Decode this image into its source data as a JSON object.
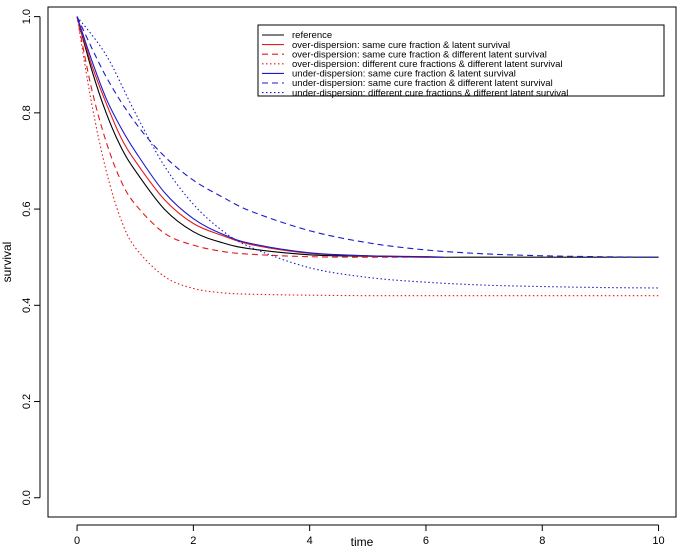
{
  "chart_data": {
    "type": "line",
    "xlabel": "time",
    "ylabel": "survival",
    "xlim": [
      -0.5,
      10.3
    ],
    "ylim": [
      -0.04,
      1.02
    ],
    "xticks": [
      "0",
      "2",
      "4",
      "6",
      "8",
      "10"
    ],
    "yticks": [
      "0.0",
      "0.2",
      "0.4",
      "0.6",
      "0.8",
      "1.0"
    ],
    "grid": false,
    "legend_position": "top-right",
    "series": [
      {
        "name": "reference",
        "color": "#000000",
        "dash": "solid",
        "x": [
          0,
          0.25,
          0.5,
          0.75,
          1,
          1.5,
          2,
          2.5,
          3,
          4,
          5,
          6,
          7,
          8,
          10
        ],
        "y": [
          1.0,
          0.89,
          0.8,
          0.73,
          0.68,
          0.6,
          0.553,
          0.53,
          0.517,
          0.505,
          0.502,
          0.5,
          0.5,
          0.5,
          0.5
        ]
      },
      {
        "name": "over-dispersion: same cure fraction & latent survival",
        "color": "#e41a1c",
        "dash": "solid",
        "x": [
          0,
          0.25,
          0.5,
          0.75,
          1,
          1.5,
          2,
          2.5,
          3,
          4,
          5,
          6,
          6.3
        ],
        "y": [
          1.0,
          0.9,
          0.82,
          0.75,
          0.7,
          0.62,
          0.57,
          0.545,
          0.526,
          0.508,
          0.503,
          0.501,
          0.5
        ]
      },
      {
        "name": "over-dispersion: same cure fraction & different latent survival",
        "color": "#e41a1c",
        "dash": "dashed",
        "x": [
          0,
          0.25,
          0.5,
          0.75,
          1,
          1.5,
          2,
          2.5,
          3,
          4,
          5,
          6,
          6.3
        ],
        "y": [
          1.0,
          0.85,
          0.74,
          0.66,
          0.61,
          0.55,
          0.525,
          0.512,
          0.506,
          0.501,
          0.5,
          0.5,
          0.5
        ]
      },
      {
        "name": "over-dispersion: different cure fractions & different latent survival",
        "color": "#e41a1c",
        "dash": "dotted",
        "x": [
          0,
          0.25,
          0.5,
          0.75,
          1,
          1.5,
          2,
          2.5,
          3,
          4,
          5,
          6,
          8,
          10
        ],
        "y": [
          1.0,
          0.82,
          0.68,
          0.58,
          0.52,
          0.46,
          0.435,
          0.426,
          0.423,
          0.421,
          0.42,
          0.42,
          0.42,
          0.42
        ]
      },
      {
        "name": "under-dispersion: same cure fraction & latent survival",
        "color": "#1a1acc",
        "dash": "solid",
        "x": [
          0,
          0.25,
          0.5,
          0.75,
          1,
          1.5,
          2,
          2.5,
          3,
          4,
          5,
          6,
          6.3
        ],
        "y": [
          1.0,
          0.91,
          0.83,
          0.77,
          0.72,
          0.635,
          0.58,
          0.548,
          0.528,
          0.509,
          0.503,
          0.501,
          0.5
        ]
      },
      {
        "name": "under-dispersion: same cure fraction & different latent survival",
        "color": "#1a1acc",
        "dash": "dashed",
        "x": [
          0,
          0.5,
          1,
          1.5,
          2,
          2.5,
          3,
          4,
          5,
          6,
          7,
          8,
          9,
          10
        ],
        "y": [
          1.0,
          0.875,
          0.78,
          0.71,
          0.66,
          0.625,
          0.595,
          0.555,
          0.53,
          0.515,
          0.507,
          0.503,
          0.501,
          0.5
        ]
      },
      {
        "name": "under-dispersion: different cure fractions & different latent survival",
        "color": "#1a1acc",
        "dash": "dotted",
        "x": [
          0,
          0.5,
          1,
          1.5,
          2,
          2.5,
          3,
          4,
          5,
          6,
          7,
          8,
          9,
          10
        ],
        "y": [
          1.0,
          0.92,
          0.8,
          0.69,
          0.61,
          0.555,
          0.52,
          0.478,
          0.458,
          0.448,
          0.442,
          0.439,
          0.437,
          0.436
        ]
      }
    ]
  }
}
